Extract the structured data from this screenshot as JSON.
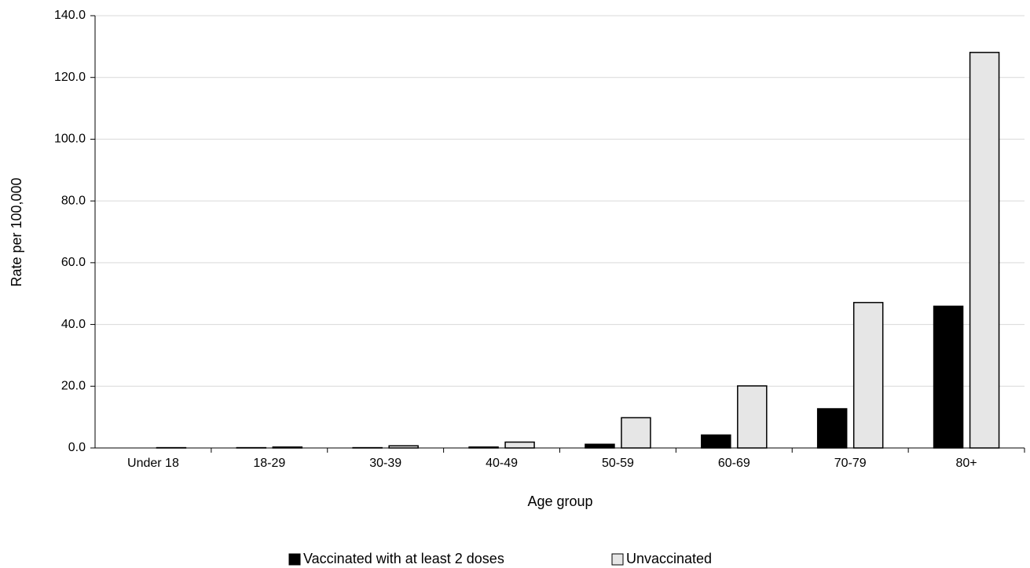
{
  "chart_data": {
    "type": "bar",
    "x_label": "Age group",
    "y_label": "Rate per 100,000",
    "categories": [
      "Under 18",
      "18-29",
      "30-39",
      "40-49",
      "50-59",
      "60-69",
      "70-79",
      "80+"
    ],
    "series": [
      {
        "name": "Vaccinated with at least 2 doses",
        "color": "#000000",
        "values": [
          0.0,
          0.1,
          0.1,
          0.3,
          1.2,
          4.2,
          12.7,
          45.9
        ]
      },
      {
        "name": "Unvaccinated",
        "color": "#e6e6e6",
        "values": [
          0.1,
          0.3,
          0.7,
          1.9,
          9.8,
          20.1,
          47.1,
          128.1
        ]
      }
    ],
    "ylim": [
      0,
      140
    ],
    "yticks": [
      {
        "value": 0,
        "label": "0.0"
      },
      {
        "value": 20,
        "label": "20.0"
      },
      {
        "value": 40,
        "label": "40.0"
      },
      {
        "value": 60,
        "label": "60.0"
      },
      {
        "value": 80,
        "label": "80.0"
      },
      {
        "value": 100,
        "label": "100.0"
      },
      {
        "value": 120,
        "label": "120.0"
      },
      {
        "value": 140,
        "label": "140.0"
      }
    ],
    "grid": true,
    "legend": "bottom"
  }
}
